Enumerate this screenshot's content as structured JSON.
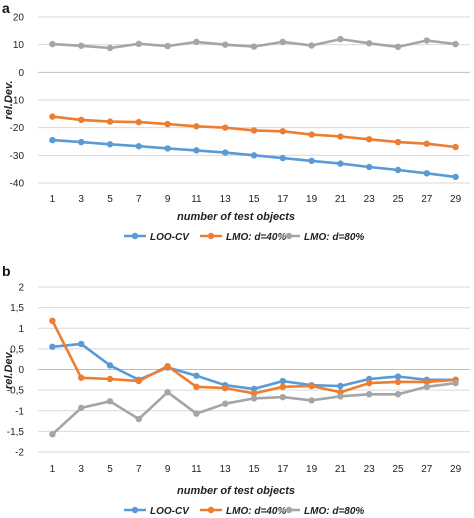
{
  "chart_data": [
    {
      "panel": "a",
      "type": "line",
      "xlabel": "number of test objects",
      "ylabel": "rel.Dev.",
      "x": [
        1,
        3,
        5,
        7,
        9,
        11,
        13,
        15,
        17,
        19,
        21,
        23,
        25,
        27,
        29
      ],
      "ylim": [
        -40,
        20
      ],
      "yticks": [
        "-40",
        "-30",
        "-20",
        "-10",
        "0",
        "10",
        "20"
      ],
      "ytick_values": [
        -40,
        -30,
        -20,
        -10,
        0,
        10,
        20
      ],
      "grid": true,
      "legend": "bottom",
      "series": [
        {
          "name": "LOO-CV",
          "color": "#5b9bd5",
          "values": [
            -24.5,
            -25.2,
            -26,
            -26.7,
            -27.5,
            -28.2,
            -29,
            -30,
            -31,
            -32,
            -33,
            -34.2,
            -35.3,
            -36.5,
            -37.8
          ]
        },
        {
          "name": "LMO: d=40%",
          "color": "#ed7d31",
          "values": [
            -16,
            -17.2,
            -17.8,
            -18,
            -18.7,
            -19.5,
            -20,
            -21,
            -21.3,
            -22.5,
            -23.2,
            -24.2,
            -25.2,
            -25.8,
            -27
          ]
        },
        {
          "name": "LMO: d=80%",
          "color": "#a5a5a5",
          "values": [
            10.2,
            9.6,
            8.8,
            10.3,
            9.5,
            11,
            10,
            9.3,
            11,
            9.7,
            12,
            10.5,
            9.2,
            11.5,
            10.2
          ]
        }
      ]
    },
    {
      "panel": "b",
      "type": "line",
      "xlabel": "number of test objects",
      "ylabel": "rel.Dev.",
      "x": [
        1,
        3,
        5,
        7,
        9,
        11,
        13,
        15,
        17,
        19,
        21,
        23,
        25,
        27,
        29
      ],
      "ylim": [
        -2,
        2
      ],
      "yticks": [
        "-2",
        "-1,5",
        "-1",
        "-0,5",
        "0",
        "0,5",
        "1",
        "1,5",
        "2"
      ],
      "ytick_values": [
        -2,
        -1.5,
        -1,
        -0.5,
        0,
        0.5,
        1,
        1.5,
        2
      ],
      "grid": true,
      "legend": "bottom",
      "series": [
        {
          "name": "LOO-CV",
          "color": "#5b9bd5",
          "values": [
            0.55,
            0.62,
            0.1,
            -0.25,
            0.05,
            -0.15,
            -0.38,
            -0.47,
            -0.28,
            -0.38,
            -0.4,
            -0.23,
            -0.17,
            -0.25,
            -0.25
          ]
        },
        {
          "name": "LMO: d=40%",
          "color": "#ed7d31",
          "values": [
            1.18,
            -0.2,
            -0.23,
            -0.28,
            0.08,
            -0.42,
            -0.45,
            -0.58,
            -0.42,
            -0.4,
            -0.55,
            -0.33,
            -0.3,
            -0.3,
            -0.25
          ]
        },
        {
          "name": "LMO: d=80%",
          "color": "#a5a5a5",
          "values": [
            -1.57,
            -0.93,
            -0.77,
            -1.2,
            -0.55,
            -1.07,
            -0.83,
            -0.7,
            -0.67,
            -0.75,
            -0.65,
            -0.6,
            -0.6,
            -0.42,
            -0.33
          ]
        }
      ]
    }
  ]
}
